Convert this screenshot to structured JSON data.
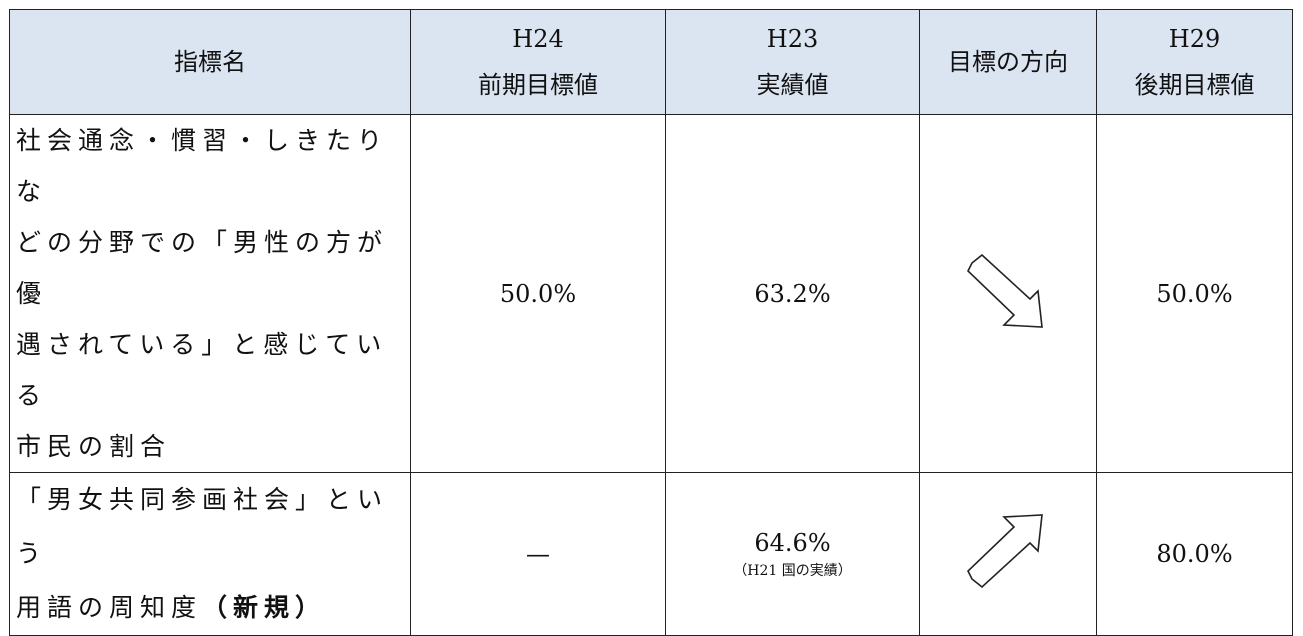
{
  "table": {
    "headers": [
      [
        "指標名"
      ],
      [
        "H24",
        "前期目標値"
      ],
      [
        "H23",
        "実績値"
      ],
      [
        "目標の方向"
      ],
      [
        "H29",
        "後期目標値"
      ]
    ],
    "rows": [
      {
        "indicator": [
          "社会通念・慣習・しきたりな",
          "どの分野での「男性の方が優",
          "遇されている」と感じている",
          "市民の割合"
        ],
        "target_h24": "50.0%",
        "actual_h23": "63.2%",
        "target_h29": "50.0%"
      },
      {
        "indicator": [
          "「男女共同参画社会」という",
          "用語の周知度"
        ],
        "indicator_note": "（新規）",
        "target_h24": "—",
        "actual_h23": "64.6%",
        "actual_note": "（H21 国の実績）",
        "target_h29": "80.0%"
      }
    ]
  }
}
